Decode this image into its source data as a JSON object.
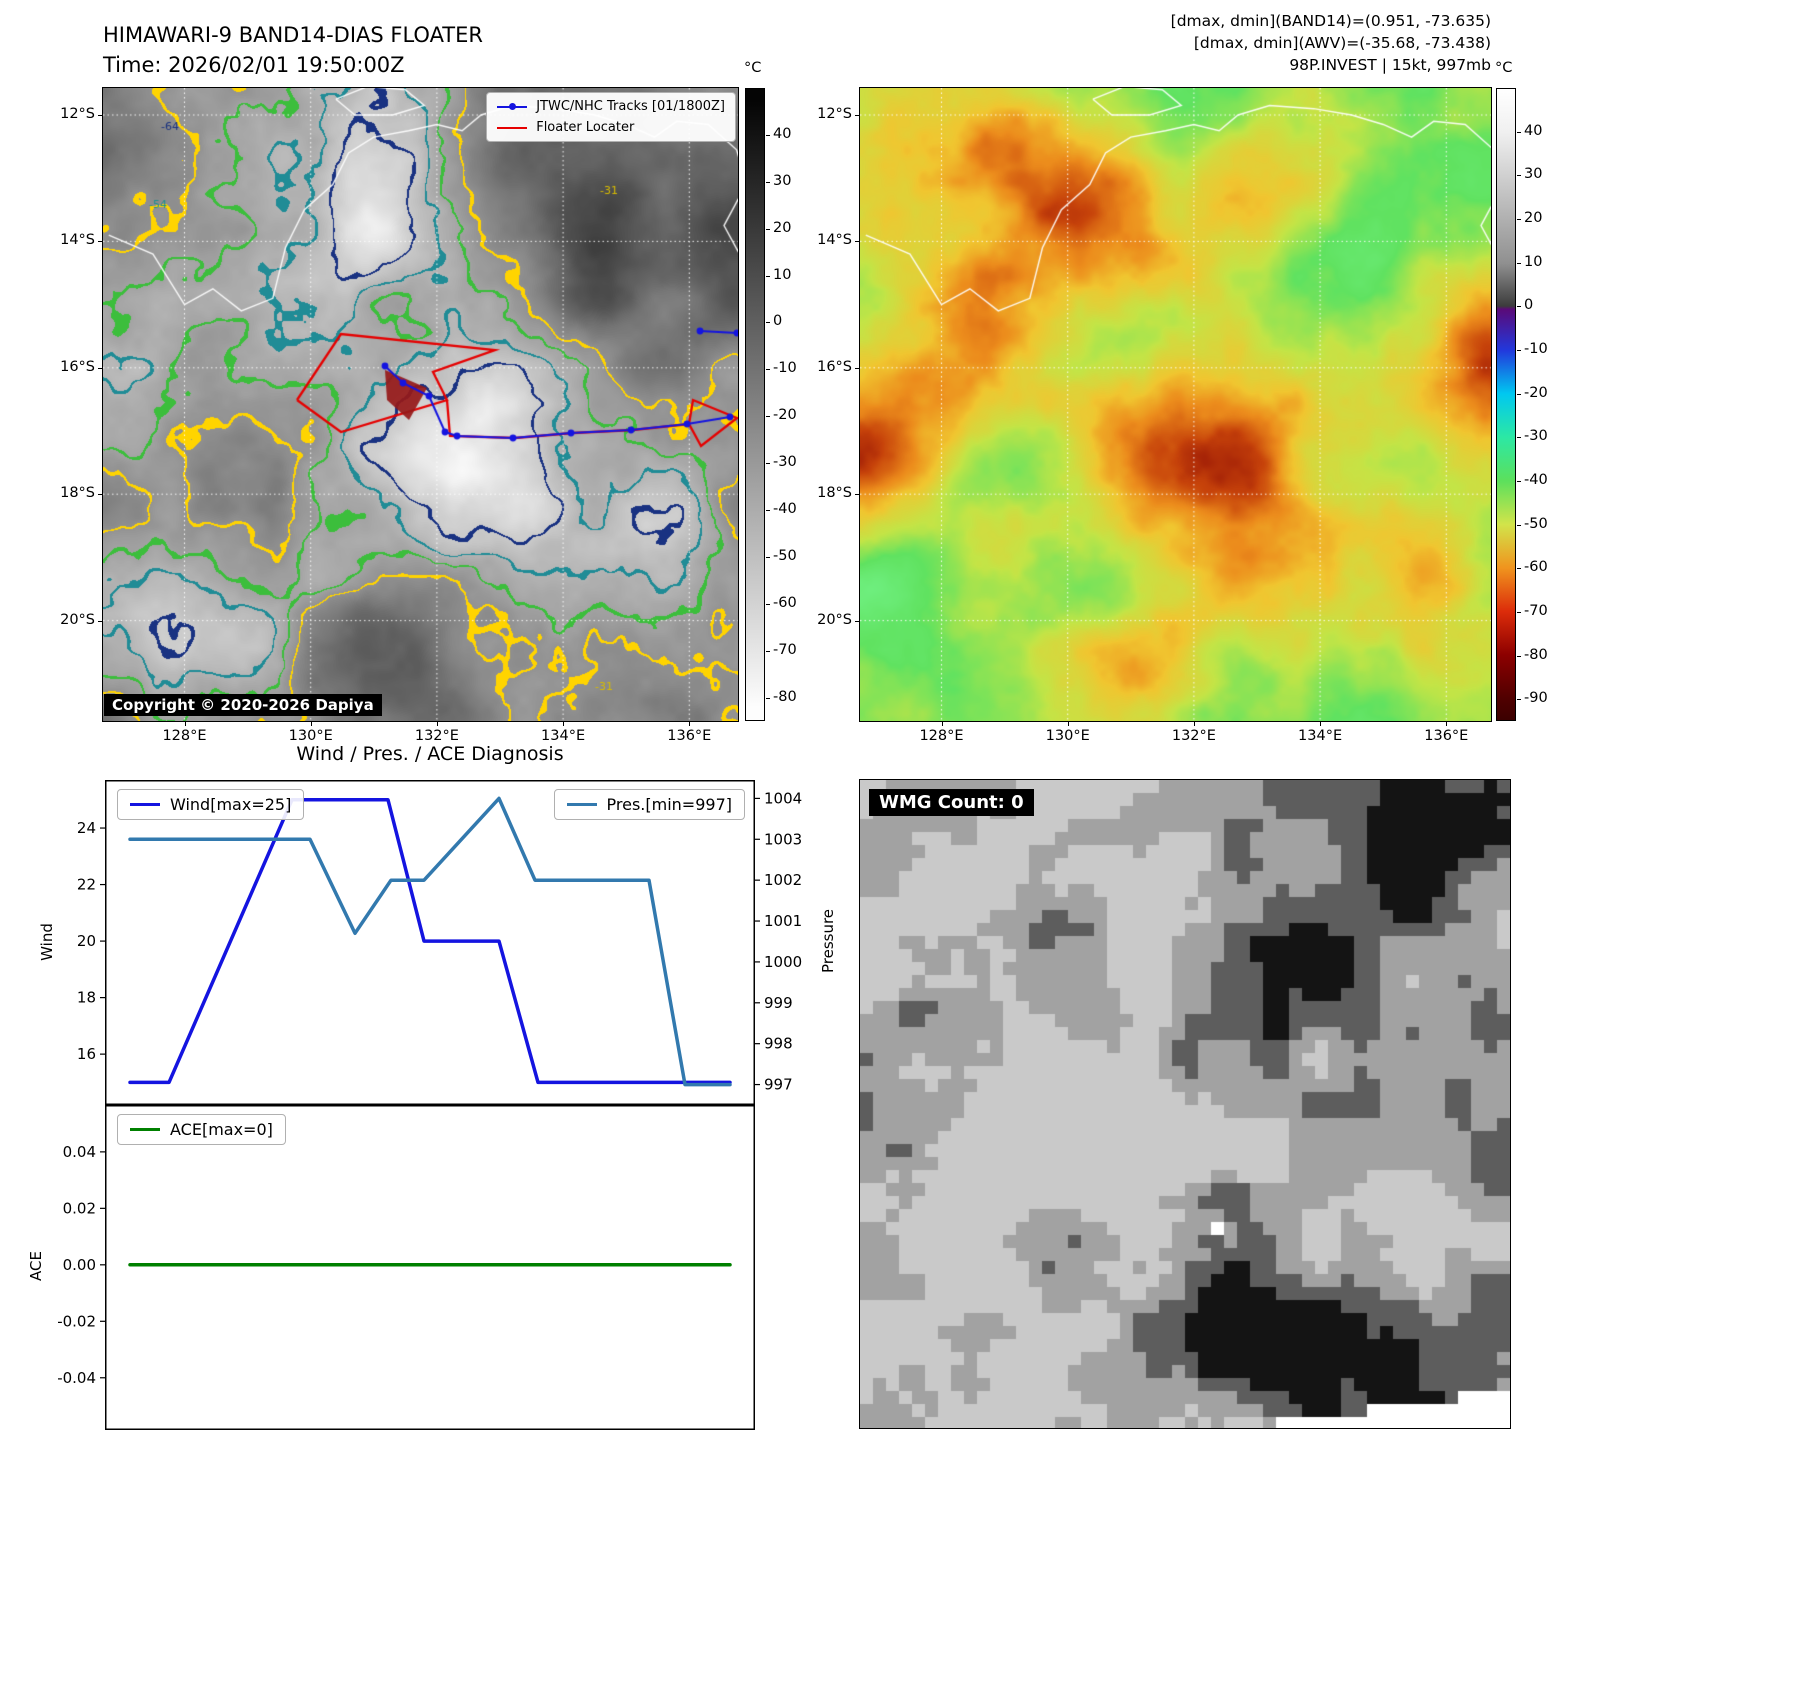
{
  "band14_panel": {
    "title": "HIMAWARI-9 BAND14-DIAS FLOATER",
    "time_line": "Time: 2026/02/01 19:50:00Z",
    "legend": [
      {
        "label": "JTWC/NHC Tracks [01/1800Z]",
        "color": "#1414e0"
      },
      {
        "label": "Floater Locater",
        "color": "#e60000"
      }
    ],
    "copyright": "Copyright © 2020-2026 Dapiya",
    "x_tick_labels": [
      "128°E",
      "130°E",
      "132°E",
      "134°E",
      "136°E"
    ],
    "y_tick_labels": [
      "12°S",
      "14°S",
      "16°S",
      "18°S",
      "20°S"
    ],
    "contour_labels": [
      {
        "text": "-64",
        "color": "#19327f"
      },
      {
        "text": "-54",
        "color": "#1f8f8f"
      },
      {
        "text": "-31",
        "color": "#d8bc00"
      },
      {
        "text": "-31",
        "color": "#d8bc00"
      }
    ],
    "colorbar": {
      "unit": "°C",
      "ticks": [
        40,
        30,
        20,
        10,
        0,
        -10,
        -20,
        -30,
        -40,
        -50,
        -60,
        -70,
        -80
      ]
    }
  },
  "awv_panel": {
    "header_lines": [
      "[dmax, dmin](BAND14)=(0.951, -73.635)",
      "[dmax, dmin](AWV)=(-35.68, -73.438)",
      "98P.INVEST | 15kt, 997mb"
    ],
    "x_tick_labels": [
      "128°E",
      "130°E",
      "132°E",
      "134°E",
      "136°E"
    ],
    "y_tick_labels": [
      "12°S",
      "14°S",
      "16°S",
      "18°S",
      "20°S"
    ],
    "colorbar": {
      "unit": "°C",
      "ticks": [
        40,
        30,
        20,
        10,
        0,
        -10,
        -20,
        -30,
        -40,
        -50,
        -60,
        -70,
        -80,
        -90
      ]
    }
  },
  "diagnosis_title": "Wind / Pres. / ACE Diagnosis",
  "wmg_panel": {
    "label": "WMG Count: 0"
  },
  "chart_data": [
    {
      "type": "line",
      "title": "Wind / Pres. / ACE Diagnosis",
      "x_range": [
        0,
        1
      ],
      "series": [
        {
          "name": "Wind[max=25]",
          "color": "#1414e0",
          "axis": "left",
          "points": [
            [
              0,
              15
            ],
            [
              0.065,
              15
            ],
            [
              0.27,
              25
            ],
            [
              0.43,
              25
            ],
            [
              0.49,
              20
            ],
            [
              0.615,
              20
            ],
            [
              0.68,
              15
            ],
            [
              1,
              15
            ]
          ]
        },
        {
          "name": "Pres.[min=997]",
          "color": "#3279ae",
          "axis": "right",
          "points": [
            [
              0,
              1003
            ],
            [
              0.3,
              1003
            ],
            [
              0.375,
              1000.7
            ],
            [
              0.435,
              1002
            ],
            [
              0.49,
              1002
            ],
            [
              0.615,
              1004
            ],
            [
              0.675,
              1002
            ],
            [
              0.865,
              1002
            ],
            [
              0.925,
              997
            ],
            [
              1,
              997
            ]
          ]
        }
      ],
      "left_axis": {
        "label": "Wind",
        "ticks": [
          [
            16,
            "16"
          ],
          [
            18,
            "18"
          ],
          [
            20,
            "20"
          ],
          [
            22,
            "22"
          ],
          [
            24,
            "24"
          ]
        ],
        "ylim": [
          14.2,
          25.7
        ]
      },
      "right_axis": {
        "label": "Pressure",
        "ticks": [
          [
            997,
            "997"
          ],
          [
            998,
            "998"
          ],
          [
            999,
            "999"
          ],
          [
            1000,
            "1000"
          ],
          [
            1001,
            "1001"
          ],
          [
            1002,
            "1002"
          ],
          [
            1003,
            "1003"
          ],
          [
            1004,
            "1004"
          ]
        ],
        "ylim": [
          996.5,
          1004.45
        ]
      },
      "grid": false,
      "legend_position": "upper-left and upper-right"
    },
    {
      "type": "line",
      "series": [
        {
          "name": "ACE[max=0]",
          "color": "#008000",
          "axis": "left",
          "points": [
            [
              0,
              0
            ],
            [
              1,
              0
            ]
          ]
        }
      ],
      "left_axis": {
        "label": "ACE",
        "ticks": [
          [
            0.04,
            "0.04"
          ],
          [
            0.02,
            "0.02"
          ],
          [
            0,
            "0.00"
          ],
          [
            -0.02,
            "-0.02"
          ],
          [
            -0.04,
            "-0.04"
          ]
        ],
        "ylim": [
          -0.0585,
          0.0566
        ]
      },
      "grid": false,
      "legend_position": "upper-left"
    }
  ]
}
